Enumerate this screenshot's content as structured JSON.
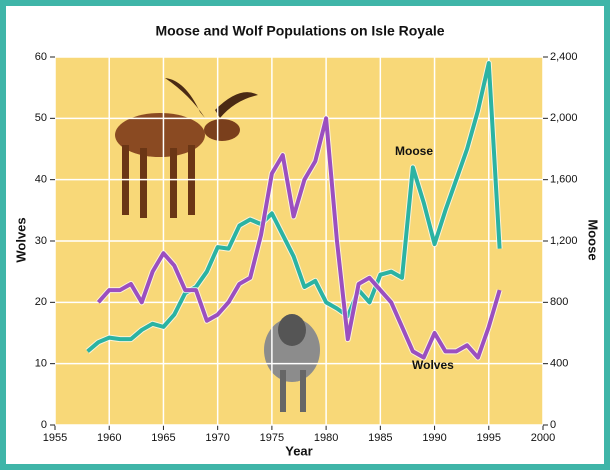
{
  "chart_data": {
    "type": "line",
    "title": "Moose and Wolf Populations on Isle Royale",
    "x_label": "Year",
    "y_label": "Wolves",
    "y2_label": "Moose",
    "x": [
      1958,
      1959,
      1960,
      1961,
      1962,
      1963,
      1964,
      1965,
      1966,
      1967,
      1968,
      1969,
      1970,
      1971,
      1972,
      1973,
      1974,
      1975,
      1976,
      1977,
      1978,
      1979,
      1980,
      1981,
      1982,
      1983,
      1984,
      1985,
      1986,
      1987,
      1988,
      1989,
      1990,
      1991,
      1992,
      1993,
      1994,
      1995,
      1996
    ],
    "series": [
      {
        "name": "Moose",
        "color": "#2bb3a3",
        "axis": "y2",
        "values": [
          480,
          540,
          570,
          560,
          560,
          620,
          660,
          640,
          720,
          860,
          900,
          1000,
          1160,
          1150,
          1300,
          1340,
          1310,
          1380,
          1240,
          1100,
          900,
          940,
          800,
          760,
          710,
          880,
          800,
          980,
          1000,
          960,
          1680,
          1450,
          1180,
          1400,
          1600,
          1800,
          2050,
          2360,
          1150
        ]
      },
      {
        "name": "Wolves",
        "color": "#9b4fc0",
        "values": [
          null,
          20,
          22,
          22,
          23,
          20,
          25,
          28,
          26,
          22,
          22,
          17,
          18,
          20,
          23,
          24,
          31,
          41,
          44,
          34,
          40,
          43,
          50,
          30,
          14,
          23,
          24,
          22,
          20,
          16,
          12,
          11,
          15,
          12,
          12,
          13,
          11,
          16,
          22
        ]
      }
    ],
    "xlim": [
      1955,
      2000
    ],
    "xticks": [
      1955,
      1960,
      1965,
      1970,
      1975,
      1980,
      1985,
      1990,
      1995,
      2000
    ],
    "ylim": [
      0,
      60
    ],
    "yticks": [
      0,
      10,
      20,
      30,
      40,
      50,
      60
    ],
    "y2lim": [
      0,
      2400
    ],
    "y2ticks": [
      0,
      400,
      800,
      {
        "value": 1200,
        "label": "1,200"
      },
      {
        "value": 1600,
        "label": "1,600"
      },
      {
        "value": 2000,
        "label": "2,000"
      },
      {
        "value": 2400,
        "label": "2,400"
      }
    ],
    "grid": true
  }
}
